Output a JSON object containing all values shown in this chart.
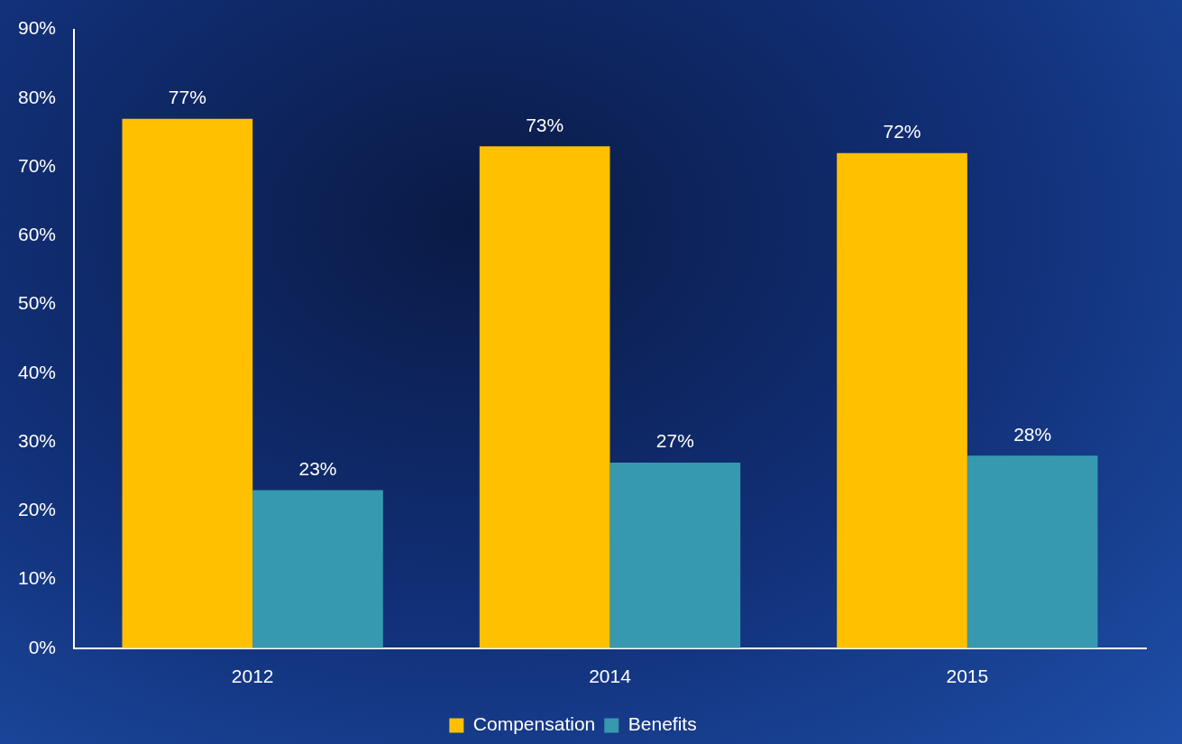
{
  "chart_data": {
    "type": "bar",
    "categories": [
      "2012",
      "2014",
      "2015"
    ],
    "series": [
      {
        "name": "Compensation",
        "color": "#ffc000",
        "values": [
          77,
          73,
          72
        ],
        "value_labels": [
          "77%",
          "73%",
          "72%"
        ]
      },
      {
        "name": "Benefits",
        "color": "#3799b0",
        "values": [
          23,
          27,
          28
        ],
        "value_labels": [
          "23%",
          "27%",
          "28%"
        ]
      }
    ],
    "ylim": [
      0,
      90
    ],
    "yticks": [
      {
        "value": 0,
        "label": "0%"
      },
      {
        "value": 10,
        "label": "10%"
      },
      {
        "value": 20,
        "label": "20%"
      },
      {
        "value": 30,
        "label": "30%"
      },
      {
        "value": 40,
        "label": "40%"
      },
      {
        "value": 50,
        "label": "50%"
      },
      {
        "value": 60,
        "label": "60%"
      },
      {
        "value": 70,
        "label": "70%"
      },
      {
        "value": 80,
        "label": "80%"
      },
      {
        "value": 90,
        "label": "90%"
      }
    ],
    "grid": false,
    "legend": "bottom"
  }
}
